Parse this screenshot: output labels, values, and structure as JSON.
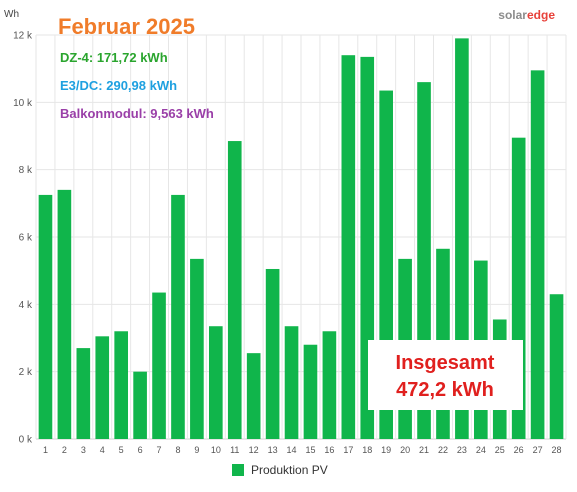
{
  "title": "Februar 2025",
  "logo": {
    "part1": "solar",
    "part2": "edge"
  },
  "annotations": [
    {
      "text": "DZ-4: 171,72 kWh",
      "color": "#2aa52e"
    },
    {
      "text": "E3/DC: 290,98 kWh",
      "color": "#1ea0e0"
    },
    {
      "text": "Balkonmodul: 9,563 kWh",
      "color": "#9a3fa8"
    }
  ],
  "total_box": {
    "line1": "Insgesamt",
    "line2": "472,2 kWh"
  },
  "colors": {
    "bar": "#10b54b",
    "grid": "#e6e6e6",
    "title": "#f07c2a"
  },
  "chart_data": {
    "type": "bar",
    "ylabel": "Wh",
    "y_tick_labels": [
      "0 k",
      "2 k",
      "4 k",
      "6 k",
      "8 k",
      "10 k",
      "12 k"
    ],
    "ylim": [
      0,
      12000
    ],
    "grid": true,
    "legend_position": "bottom-center",
    "categories": [
      "1",
      "2",
      "3",
      "4",
      "5",
      "6",
      "7",
      "8",
      "9",
      "10",
      "11",
      "12",
      "13",
      "14",
      "15",
      "16",
      "17",
      "18",
      "19",
      "20",
      "21",
      "22",
      "23",
      "24",
      "25",
      "26",
      "27",
      "28"
    ],
    "series": [
      {
        "name": "Produktion PV",
        "values": [
          7250,
          7400,
          2700,
          3050,
          3200,
          2000,
          4350,
          7250,
          5350,
          3350,
          8850,
          2550,
          5050,
          3350,
          2800,
          3200,
          11400,
          11350,
          10350,
          5350,
          10600,
          5650,
          11900,
          5300,
          3550,
          8950,
          10950,
          4300
        ]
      }
    ]
  }
}
